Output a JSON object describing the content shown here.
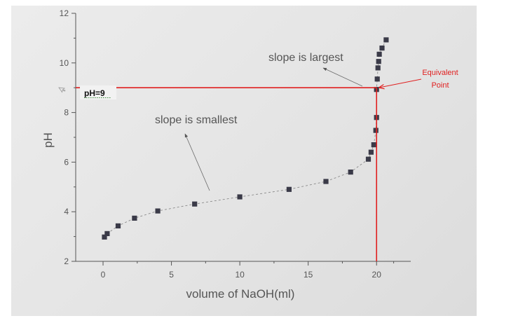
{
  "chart_data": {
    "type": "scatter",
    "xlabel": "volume of NaOH(ml)",
    "ylabel": "pH",
    "xlim": [
      -2,
      22.5
    ],
    "ylim": [
      2,
      12
    ],
    "x_ticks": [
      0,
      5,
      10,
      15,
      20
    ],
    "y_ticks": [
      2,
      4,
      6,
      8,
      10,
      12
    ],
    "grid": false,
    "series": [
      {
        "marker": "square",
        "line": "dashed",
        "points": [
          {
            "x": 0.1,
            "y": 2.98
          },
          {
            "x": 0.3,
            "y": 3.12
          },
          {
            "x": 1.1,
            "y": 3.43
          },
          {
            "x": 2.3,
            "y": 3.74
          },
          {
            "x": 4.0,
            "y": 4.03
          },
          {
            "x": 6.7,
            "y": 4.31
          },
          {
            "x": 10.0,
            "y": 4.6
          },
          {
            "x": 13.6,
            "y": 4.9
          },
          {
            "x": 16.3,
            "y": 5.22
          },
          {
            "x": 18.1,
            "y": 5.6
          },
          {
            "x": 19.4,
            "y": 6.12
          },
          {
            "x": 19.6,
            "y": 6.4
          },
          {
            "x": 19.8,
            "y": 6.7
          },
          {
            "x": 19.95,
            "y": 7.28
          },
          {
            "x": 20.0,
            "y": 7.8
          },
          {
            "x": 20.0,
            "y": 8.93
          },
          {
            "x": 20.05,
            "y": 9.35
          },
          {
            "x": 20.1,
            "y": 9.8
          },
          {
            "x": 20.15,
            "y": 10.06
          },
          {
            "x": 20.2,
            "y": 10.35
          },
          {
            "x": 20.4,
            "y": 10.6
          },
          {
            "x": 20.7,
            "y": 10.93
          }
        ]
      }
    ],
    "equivalence": {
      "x": 20,
      "y": 9,
      "color": "#e02020"
    },
    "annotations": {
      "ph_label": "pH=9",
      "equivalent_point": [
        "Equivalent",
        "Point"
      ],
      "slope_largest": "slope is largest",
      "slope_smallest": "slope is smallest"
    },
    "colors": {
      "marker": "#3a3a48",
      "axis": "#555555",
      "text": "#555555",
      "highlight": "#e02020"
    }
  }
}
